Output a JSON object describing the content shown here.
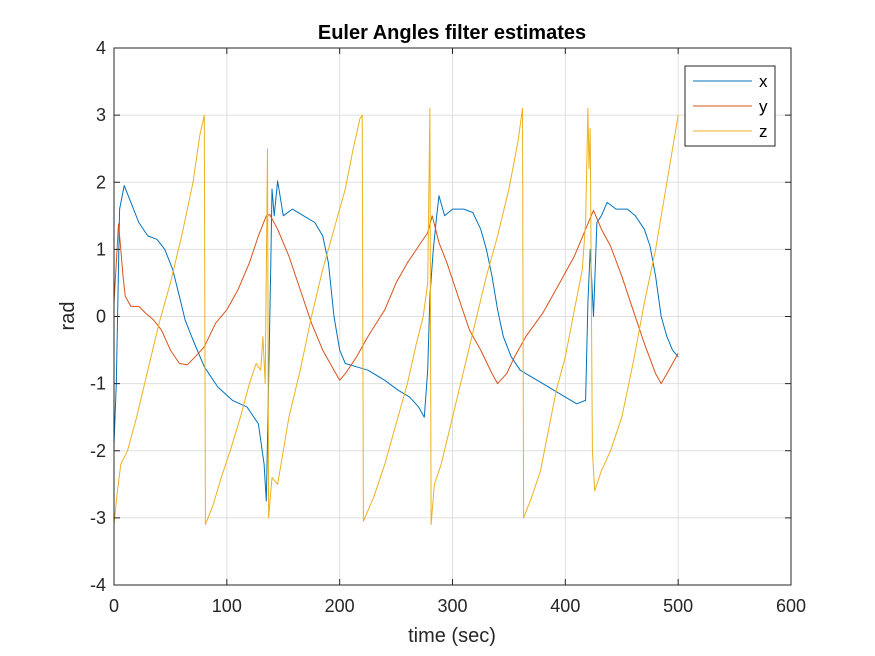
{
  "chart_data": {
    "type": "line",
    "title": "Euler Angles filter estimates",
    "xlabel": "time (sec)",
    "ylabel": "rad",
    "xlim": [
      0,
      600
    ],
    "ylim": [
      -4,
      4
    ],
    "xticks": [
      0,
      100,
      200,
      300,
      400,
      500,
      600
    ],
    "yticks": [
      -4,
      -3,
      -2,
      -1,
      0,
      1,
      2,
      3,
      4
    ],
    "xtick_labels": [
      "0",
      "100",
      "200",
      "300",
      "400",
      "500",
      "600"
    ],
    "ytick_labels": [
      "-4",
      "-3",
      "-2",
      "-1",
      "0",
      "1",
      "2",
      "3",
      "4"
    ],
    "grid": true,
    "legend_position": "top-right",
    "series": [
      {
        "name": "x",
        "color": "#0072BD",
        "points": [
          [
            0,
            -1.9
          ],
          [
            2,
            -1.0
          ],
          [
            5,
            1.6
          ],
          [
            9,
            1.95
          ],
          [
            15,
            1.7
          ],
          [
            22,
            1.4
          ],
          [
            30,
            1.2
          ],
          [
            38,
            1.15
          ],
          [
            45,
            1.0
          ],
          [
            52,
            0.7
          ],
          [
            58,
            0.3
          ],
          [
            63,
            -0.05
          ],
          [
            70,
            -0.35
          ],
          [
            80,
            -0.75
          ],
          [
            92,
            -1.05
          ],
          [
            105,
            -1.25
          ],
          [
            118,
            -1.35
          ],
          [
            128,
            -1.6
          ],
          [
            133,
            -2.2
          ],
          [
            135,
            -2.75
          ],
          [
            137,
            -1.0
          ],
          [
            139,
            0.8
          ],
          [
            140,
            1.9
          ],
          [
            142,
            1.5
          ],
          [
            145,
            2.02
          ],
          [
            150,
            1.5
          ],
          [
            158,
            1.6
          ],
          [
            168,
            1.5
          ],
          [
            178,
            1.4
          ],
          [
            185,
            1.2
          ],
          [
            190,
            0.8
          ],
          [
            195,
            0.0
          ],
          [
            200,
            -0.5
          ],
          [
            205,
            -0.7
          ],
          [
            215,
            -0.75
          ],
          [
            225,
            -0.8
          ],
          [
            240,
            -0.95
          ],
          [
            252,
            -1.1
          ],
          [
            262,
            -1.2
          ],
          [
            270,
            -1.35
          ],
          [
            275,
            -1.5
          ],
          [
            278,
            -0.8
          ],
          [
            280,
            0.3
          ],
          [
            283,
            1.0
          ],
          [
            286,
            1.5
          ],
          [
            288,
            1.8
          ],
          [
            293,
            1.5
          ],
          [
            300,
            1.6
          ],
          [
            310,
            1.6
          ],
          [
            318,
            1.55
          ],
          [
            325,
            1.3
          ],
          [
            330,
            1.0
          ],
          [
            335,
            0.6
          ],
          [
            340,
            0.1
          ],
          [
            345,
            -0.3
          ],
          [
            352,
            -0.6
          ],
          [
            360,
            -0.8
          ],
          [
            370,
            -0.9
          ],
          [
            380,
            -1.0
          ],
          [
            390,
            -1.1
          ],
          [
            400,
            -1.2
          ],
          [
            410,
            -1.3
          ],
          [
            418,
            -1.25
          ],
          [
            420,
            0.2
          ],
          [
            422,
            1.0
          ],
          [
            425,
            0.0
          ],
          [
            428,
            1.4
          ],
          [
            432,
            1.5
          ],
          [
            437,
            1.7
          ],
          [
            445,
            1.6
          ],
          [
            455,
            1.6
          ],
          [
            462,
            1.5
          ],
          [
            470,
            1.3
          ],
          [
            475,
            1.05
          ],
          [
            480,
            0.6
          ],
          [
            485,
            0.0
          ],
          [
            490,
            -0.3
          ],
          [
            495,
            -0.5
          ],
          [
            500,
            -0.6
          ]
        ]
      },
      {
        "name": "y",
        "color": "#D95319",
        "points": [
          [
            0,
            0.2
          ],
          [
            2,
            0.8
          ],
          [
            4,
            1.38
          ],
          [
            6,
            1.0
          ],
          [
            8,
            0.6
          ],
          [
            10,
            0.3
          ],
          [
            15,
            0.15
          ],
          [
            22,
            0.15
          ],
          [
            28,
            0.05
          ],
          [
            35,
            -0.05
          ],
          [
            42,
            -0.2
          ],
          [
            50,
            -0.5
          ],
          [
            58,
            -0.7
          ],
          [
            65,
            -0.72
          ],
          [
            72,
            -0.6
          ],
          [
            80,
            -0.45
          ],
          [
            90,
            -0.1
          ],
          [
            100,
            0.1
          ],
          [
            110,
            0.4
          ],
          [
            120,
            0.8
          ],
          [
            128,
            1.2
          ],
          [
            135,
            1.5
          ],
          [
            138,
            1.52
          ],
          [
            145,
            1.3
          ],
          [
            155,
            0.9
          ],
          [
            165,
            0.4
          ],
          [
            175,
            -0.1
          ],
          [
            185,
            -0.5
          ],
          [
            195,
            -0.8
          ],
          [
            200,
            -0.95
          ],
          [
            205,
            -0.85
          ],
          [
            215,
            -0.6
          ],
          [
            225,
            -0.3
          ],
          [
            240,
            0.1
          ],
          [
            250,
            0.5
          ],
          [
            260,
            0.8
          ],
          [
            270,
            1.05
          ],
          [
            278,
            1.25
          ],
          [
            282,
            1.5
          ],
          [
            288,
            1.1
          ],
          [
            295,
            0.8
          ],
          [
            305,
            0.3
          ],
          [
            315,
            -0.2
          ],
          [
            325,
            -0.5
          ],
          [
            335,
            -0.85
          ],
          [
            340,
            -1.0
          ],
          [
            348,
            -0.85
          ],
          [
            355,
            -0.6
          ],
          [
            365,
            -0.3
          ],
          [
            380,
            0.05
          ],
          [
            395,
            0.5
          ],
          [
            408,
            0.9
          ],
          [
            418,
            1.3
          ],
          [
            425,
            1.58
          ],
          [
            432,
            1.3
          ],
          [
            440,
            1.05
          ],
          [
            450,
            0.6
          ],
          [
            460,
            0.1
          ],
          [
            470,
            -0.4
          ],
          [
            480,
            -0.85
          ],
          [
            485,
            -1.0
          ],
          [
            490,
            -0.85
          ],
          [
            500,
            -0.55
          ]
        ]
      },
      {
        "name": "z",
        "color": "#EDB120",
        "points": [
          [
            0,
            -3.1
          ],
          [
            3,
            -2.6
          ],
          [
            6,
            -2.2
          ],
          [
            12,
            -2.0
          ],
          [
            20,
            -1.5
          ],
          [
            30,
            -0.8
          ],
          [
            40,
            -0.1
          ],
          [
            50,
            0.5
          ],
          [
            60,
            1.2
          ],
          [
            70,
            2.0
          ],
          [
            76,
            2.7
          ],
          [
            80,
            3.0
          ],
          [
            81,
            -3.1
          ],
          [
            88,
            -2.8
          ],
          [
            95,
            -2.4
          ],
          [
            103,
            -2.0
          ],
          [
            112,
            -1.5
          ],
          [
            120,
            -1.0
          ],
          [
            126,
            -0.7
          ],
          [
            130,
            -0.8
          ],
          [
            132,
            -0.3
          ],
          [
            134,
            -1.0
          ],
          [
            136,
            2.5
          ],
          [
            137,
            -3.0
          ],
          [
            140,
            -2.4
          ],
          [
            145,
            -2.5
          ],
          [
            150,
            -2.0
          ],
          [
            155,
            -1.5
          ],
          [
            165,
            -0.8
          ],
          [
            175,
            0.0
          ],
          [
            185,
            0.7
          ],
          [
            195,
            1.3
          ],
          [
            205,
            1.9
          ],
          [
            212,
            2.5
          ],
          [
            218,
            2.95
          ],
          [
            220,
            3.0
          ],
          [
            221,
            -3.05
          ],
          [
            230,
            -2.7
          ],
          [
            240,
            -2.2
          ],
          [
            250,
            -1.6
          ],
          [
            260,
            -1.0
          ],
          [
            268,
            -0.4
          ],
          [
            274,
            0.0
          ],
          [
            278,
            0.5
          ],
          [
            280,
            3.1
          ],
          [
            281,
            -3.1
          ],
          [
            284,
            -2.5
          ],
          [
            290,
            -2.2
          ],
          [
            300,
            -1.5
          ],
          [
            310,
            -0.8
          ],
          [
            320,
            -0.1
          ],
          [
            330,
            0.6
          ],
          [
            340,
            1.2
          ],
          [
            350,
            1.9
          ],
          [
            358,
            2.6
          ],
          [
            362,
            3.1
          ],
          [
            363,
            -3.0
          ],
          [
            370,
            -2.7
          ],
          [
            378,
            -2.3
          ],
          [
            385,
            -1.7
          ],
          [
            392,
            -1.1
          ],
          [
            400,
            -0.6
          ],
          [
            408,
            0.1
          ],
          [
            415,
            0.7
          ],
          [
            418,
            1.4
          ],
          [
            420,
            3.1
          ],
          [
            421,
            2.2
          ],
          [
            422,
            2.8
          ],
          [
            424,
            -2.0
          ],
          [
            426,
            -2.6
          ],
          [
            432,
            -2.3
          ],
          [
            440,
            -2.0
          ],
          [
            450,
            -1.5
          ],
          [
            460,
            -0.7
          ],
          [
            470,
            0.2
          ],
          [
            480,
            1.0
          ],
          [
            490,
            2.0
          ],
          [
            500,
            3.0
          ]
        ]
      }
    ]
  }
}
